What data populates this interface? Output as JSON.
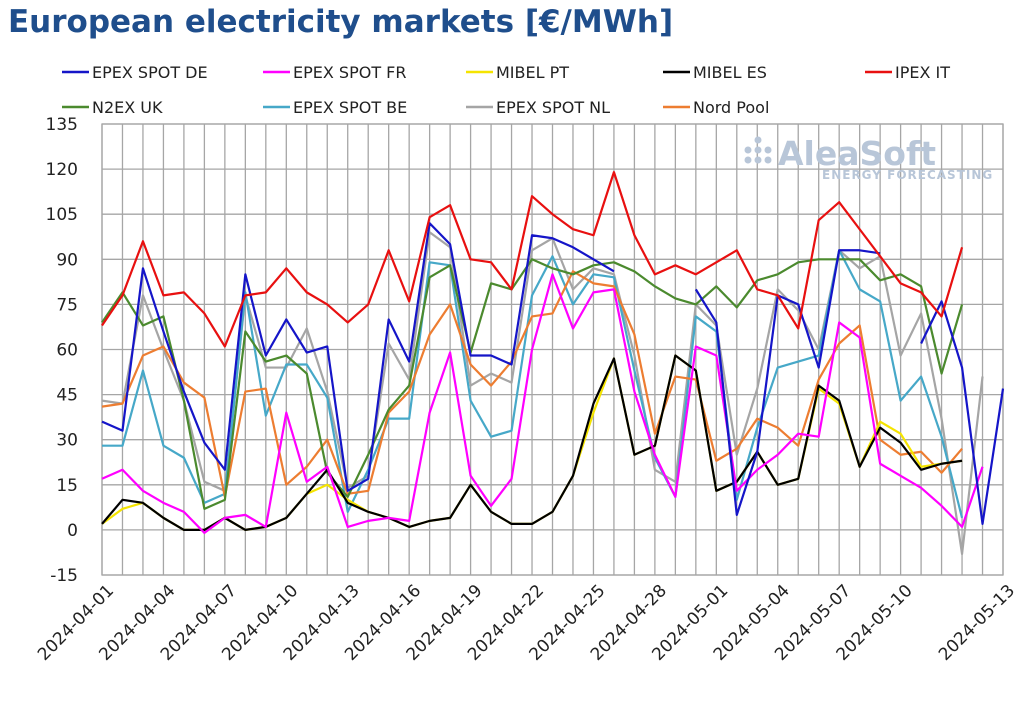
{
  "chart_data": {
    "type": "line",
    "title": "European electricity markets [€/MWh]",
    "ylim": [
      -15,
      135
    ],
    "yticks": [
      -15,
      0,
      15,
      30,
      45,
      60,
      75,
      90,
      105,
      120,
      135
    ],
    "x_tick_labels": [
      "2024-04-01",
      "2024-04-04",
      "2024-04-07",
      "2024-04-10",
      "2024-04-13",
      "2024-04-16",
      "2024-04-19",
      "2024-04-22",
      "2024-04-25",
      "2024-04-28",
      "2024-05-01",
      "2024-05-04",
      "2024-05-07",
      "2024-05-10",
      "2024-05-13"
    ],
    "grid": true,
    "legend_position": "top",
    "series": [
      {
        "name": "EPEX SPOT DE",
        "color": "#1515c8",
        "values": [
          36,
          33,
          87,
          66,
          46,
          29,
          20,
          85,
          58,
          70,
          59,
          61,
          13,
          17,
          70,
          56,
          102,
          95,
          58,
          58,
          55,
          98,
          97,
          94,
          90,
          86,
          null,
          null,
          null,
          80,
          69,
          5,
          26,
          78,
          75,
          54,
          93,
          93,
          92,
          null,
          62,
          76,
          54,
          2,
          47
        ]
      },
      {
        "name": "EPEX SPOT FR",
        "color": "#ff00ff",
        "values": [
          17,
          20,
          13,
          9,
          6,
          -1,
          4,
          5,
          1,
          39,
          16,
          21,
          1,
          3,
          4,
          3,
          39,
          59,
          18,
          8,
          17,
          60,
          85,
          67,
          79,
          80,
          46,
          25,
          11,
          61,
          58,
          13,
          20,
          25,
          32,
          31,
          69,
          64,
          22,
          18,
          14,
          8,
          1,
          21,
          null
        ]
      },
      {
        "name": "MIBEL PT",
        "color": "#f5e400",
        "values": [
          2,
          7,
          9,
          4,
          0,
          0,
          4,
          0,
          1,
          4,
          12,
          15,
          10,
          6,
          4,
          1,
          3,
          4,
          15,
          6,
          2,
          2,
          6,
          18,
          39,
          57,
          25,
          28,
          58,
          53,
          13,
          16,
          26,
          15,
          17,
          47,
          42,
          21,
          36,
          32,
          21,
          22,
          23,
          null,
          null
        ]
      },
      {
        "name": "MIBEL ES",
        "color": "#000000",
        "values": [
          2,
          10,
          9,
          4,
          0,
          0,
          4,
          0,
          1,
          4,
          12,
          20,
          9,
          6,
          4,
          1,
          3,
          4,
          15,
          6,
          2,
          2,
          6,
          18,
          42,
          57,
          25,
          28,
          58,
          53,
          13,
          16,
          26,
          15,
          17,
          48,
          43,
          21,
          34,
          29,
          20,
          22,
          23,
          null,
          null
        ]
      },
      {
        "name": "IPEX IT",
        "color": "#e81010",
        "values": [
          68,
          78,
          96,
          78,
          79,
          72,
          61,
          78,
          79,
          87,
          79,
          75,
          69,
          75,
          93,
          76,
          104,
          108,
          90,
          89,
          80,
          111,
          105,
          100,
          98,
          119,
          98,
          85,
          88,
          85,
          89,
          93,
          80,
          78,
          67,
          103,
          109,
          100,
          91,
          82,
          79,
          71,
          94,
          null,
          null
        ]
      },
      {
        "name": "N2EX UK",
        "color": "#4b8a2e",
        "values": [
          69,
          79,
          68,
          71,
          43,
          7,
          10,
          66,
          56,
          58,
          52,
          19,
          11,
          25,
          40,
          48,
          84,
          88,
          59,
          82,
          80,
          90,
          87,
          85,
          88,
          89,
          86,
          81,
          77,
          75,
          81,
          74,
          83,
          85,
          89,
          90,
          90,
          90,
          83,
          85,
          81,
          52,
          75,
          null,
          null
        ]
      },
      {
        "name": "EPEX SPOT BE",
        "color": "#46a8c8",
        "values": [
          28,
          28,
          53,
          28,
          24,
          9,
          12,
          79,
          38,
          55,
          55,
          44,
          6,
          20,
          37,
          37,
          89,
          88,
          43,
          31,
          33,
          78,
          91,
          75,
          85,
          84,
          53,
          24,
          11,
          71,
          66,
          10,
          34,
          54,
          56,
          58,
          93,
          80,
          76,
          43,
          51,
          31,
          4,
          null,
          null
        ]
      },
      {
        "name": "EPEX SPOT NL",
        "color": "#a5a5a5",
        "values": [
          43,
          42,
          78,
          60,
          43,
          16,
          13,
          78,
          54,
          54,
          67,
          46,
          14,
          18,
          62,
          50,
          99,
          94,
          48,
          52,
          49,
          93,
          97,
          80,
          87,
          85,
          58,
          20,
          16,
          75,
          68,
          25,
          47,
          80,
          73,
          60,
          93,
          87,
          91,
          58,
          72,
          37,
          -8,
          51,
          null
        ]
      },
      {
        "name": "Nord Pool",
        "color": "#ed7d31",
        "values": [
          41,
          42,
          58,
          61,
          49,
          44,
          11,
          46,
          47,
          15,
          21,
          30,
          12,
          13,
          39,
          46,
          65,
          75,
          55,
          48,
          56,
          71,
          72,
          86,
          82,
          81,
          65,
          32,
          51,
          50,
          23,
          27,
          37,
          34,
          28,
          50,
          62,
          68,
          30,
          25,
          26,
          19,
          27,
          null,
          null
        ]
      }
    ]
  },
  "logo": {
    "name": "AleaSoft",
    "tagline": "ENERGY FORECASTING"
  }
}
